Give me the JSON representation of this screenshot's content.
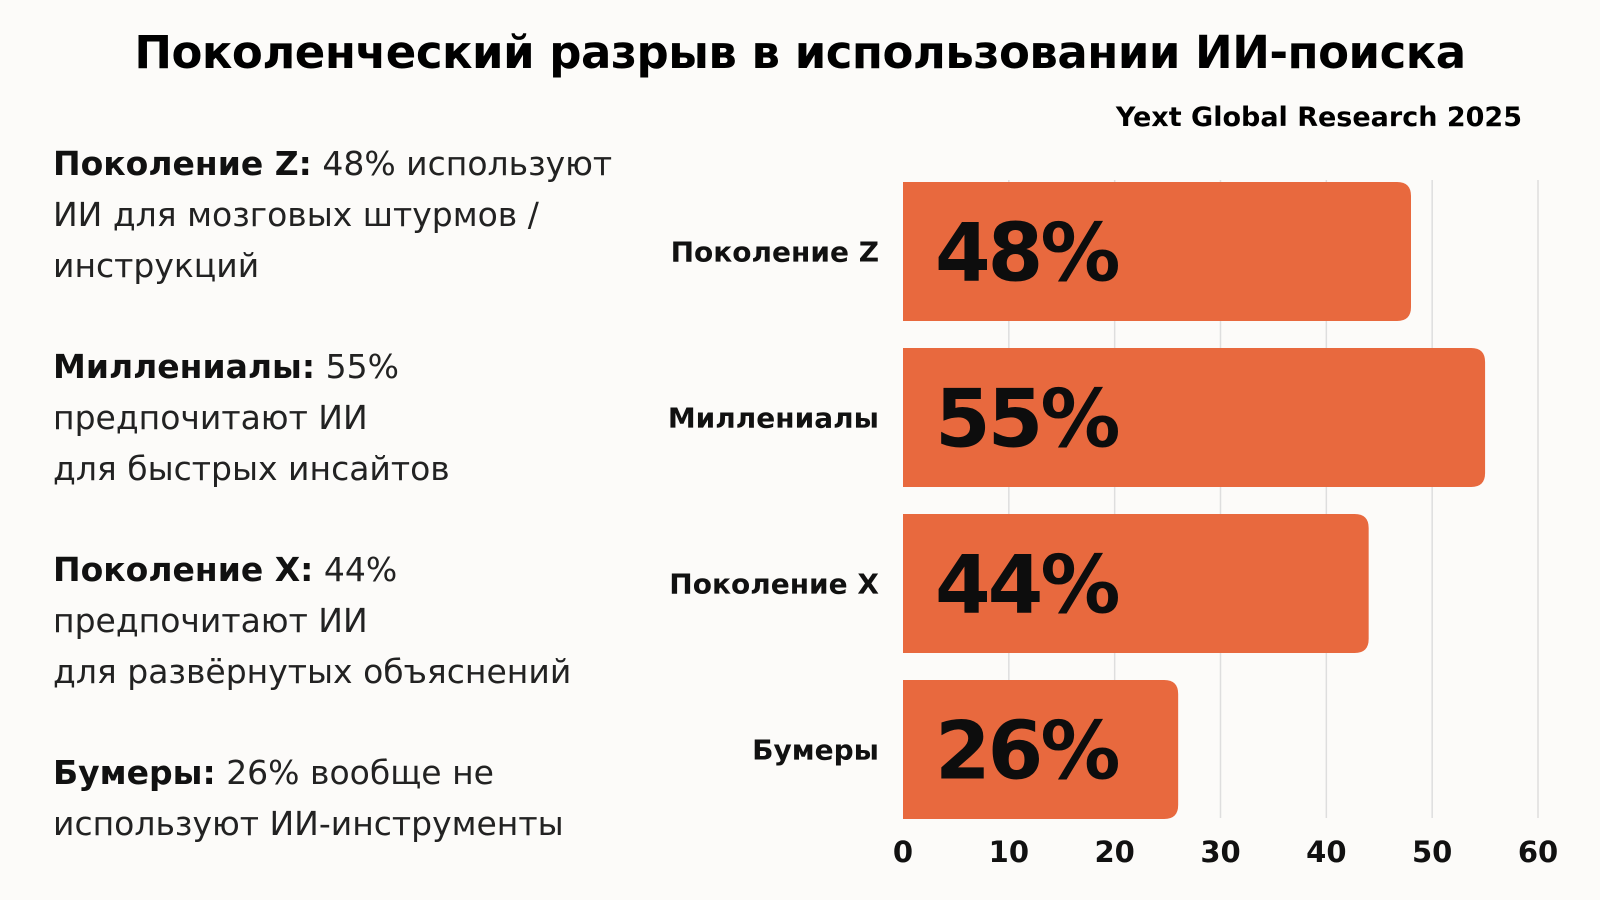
{
  "header": {
    "title": "Поколенческий разрыв в использовании ИИ-поиска",
    "source": "Yext Global Research 2025"
  },
  "notes": [
    {
      "heading": "Поколение Z:",
      "lines": [
        "48% используют",
        "ИИ для мозговых штурмов /",
        "инструкций"
      ]
    },
    {
      "heading": "Миллениалы:",
      "lines": [
        "55%",
        "предпочитают ИИ",
        "для быстрых инсайтов"
      ]
    },
    {
      "heading": "Поколение X:",
      "lines": [
        "44%",
        "предпочитают ИИ",
        "для развёрнутых объяснений"
      ]
    },
    {
      "heading": "Бумеры:",
      "lines": [
        "26% вообще не",
        "используют ИИ-инструменты"
      ]
    }
  ],
  "chart_data": {
    "type": "bar",
    "orientation": "horizontal",
    "categories": [
      "Поколение Z",
      "Миллениалы",
      "Поколение X",
      "Бумеры"
    ],
    "values": [
      48,
      55,
      44,
      26
    ],
    "data_labels": [
      "48%",
      "55%",
      "44%",
      "26%"
    ],
    "xlim": [
      0,
      60
    ],
    "xticks": [
      "0",
      "10",
      "20",
      "30",
      "40",
      "50",
      "60"
    ],
    "title": "",
    "xlabel": "",
    "ylabel": "",
    "grid": true,
    "bar_color": "#e8693e",
    "grid_color": "#dedede"
  }
}
